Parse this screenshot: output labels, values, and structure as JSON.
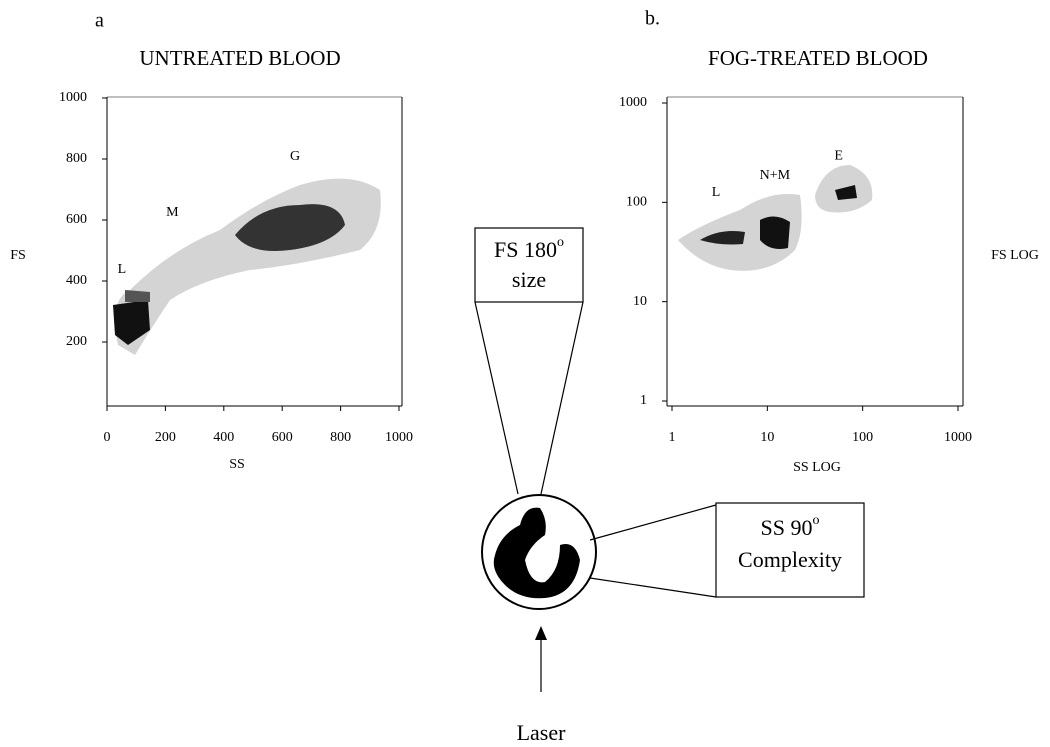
{
  "chart_data": [
    {
      "type": "scatter",
      "panel_label": "a",
      "title": "UNTREATED BLOOD",
      "x_label": "SS",
      "y_label": "FS",
      "xlim": [
        0,
        1000
      ],
      "ylim": [
        0,
        1000
      ],
      "xticks": [
        0,
        200,
        400,
        600,
        800,
        1000
      ],
      "yticks": [
        200,
        400,
        600,
        800,
        1000
      ],
      "annotations": [
        {
          "text": "L",
          "x": 51,
          "y": 436
        },
        {
          "text": "M",
          "x": 224,
          "y": 623
        },
        {
          "text": "G",
          "x": 644,
          "y": 807
        }
      ]
    },
    {
      "type": "scatter",
      "panel_label": "b.",
      "title": "FOG-TREATED BLOOD",
      "x_label": "SS LOG",
      "y_label": "FS LOG",
      "log_x": true,
      "log_y": true,
      "xlim": [
        1,
        1000
      ],
      "ylim": [
        1,
        1000
      ],
      "xticks": [
        1,
        10,
        100,
        1000
      ],
      "yticks": [
        1,
        10,
        100,
        1000
      ],
      "annotations": [
        {
          "text": "L",
          "x": 2.9,
          "y": 125
        },
        {
          "text": "N+M",
          "x": 12,
          "y": 185
        },
        {
          "text": "E",
          "x": 56,
          "y": 290
        }
      ]
    }
  ],
  "diagram": {
    "fs_box": {
      "text": "FS 180",
      "superscript": "o",
      "second_line": "size"
    },
    "ss_box": {
      "text": "SS 90",
      "superscript": "o",
      "second_line": "Complexity"
    },
    "arrow_label": "Laser"
  }
}
